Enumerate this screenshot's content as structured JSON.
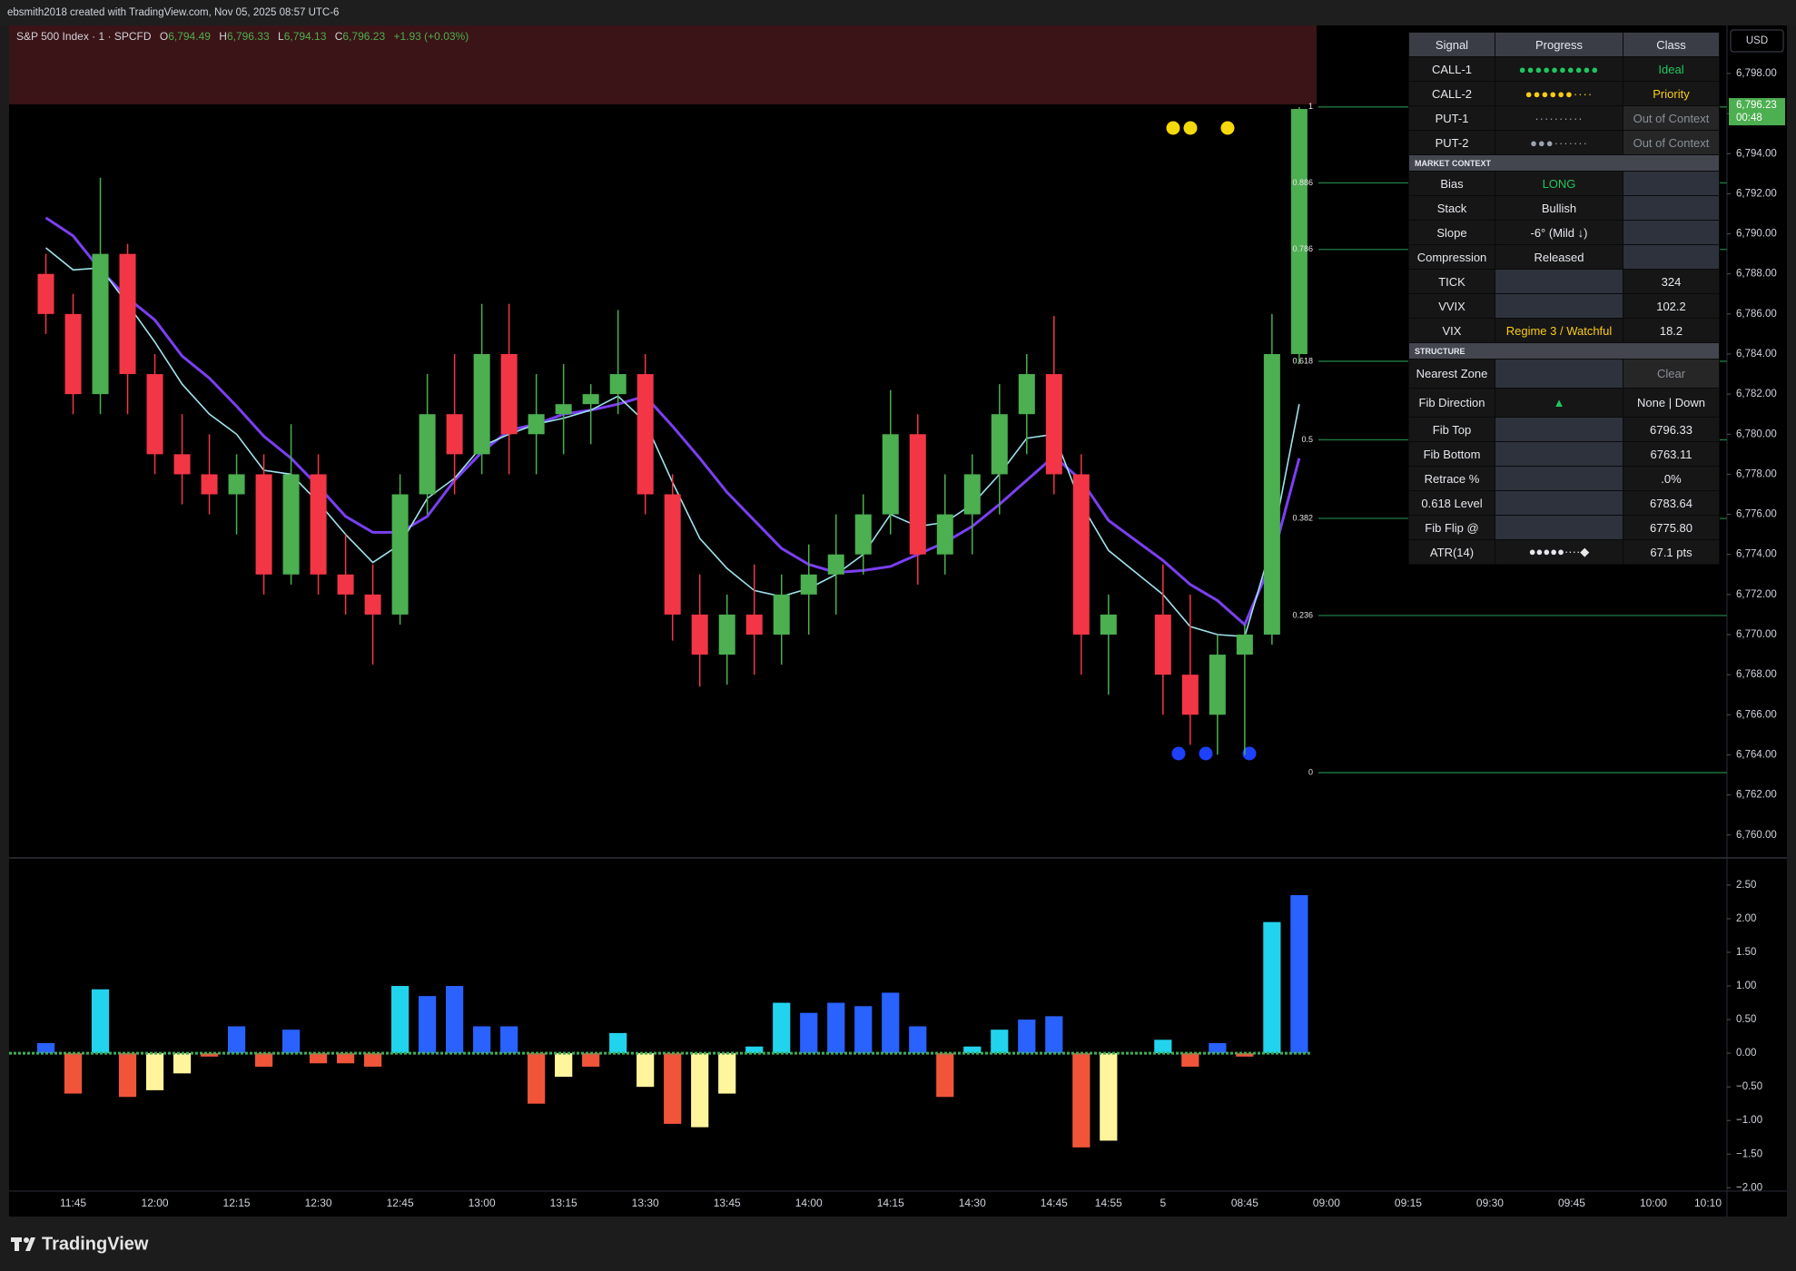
{
  "header": {
    "text": "ebsmith2018 created with TradingView.com, Nov 05, 2025 08:57 UTC-6"
  },
  "legend": {
    "symbol": "S&P 500 Index · 1 · SPCFD",
    "o_label": "O",
    "open": "6,794.49",
    "h_label": "H",
    "high": "6,796.33",
    "l_label": "L",
    "low": "6,794.13",
    "c_label": "C",
    "close": "6,796.23",
    "change": "+1.93 (+0.03%)"
  },
  "currency": "USD",
  "last_price": {
    "label": "6,796.23",
    "countdown": "00:48"
  },
  "footer": {
    "brand": "TradingView"
  },
  "chart_data": [
    {
      "type": "candlestick",
      "x": [
        0,
        1,
        2,
        3,
        4,
        5,
        6,
        7,
        8,
        9,
        10,
        11,
        12,
        13,
        14,
        15,
        16,
        17,
        18,
        19,
        20,
        21,
        22,
        23,
        24,
        25,
        26,
        27,
        28,
        29,
        30,
        31,
        32,
        33,
        34,
        35,
        36,
        37,
        38,
        39,
        41,
        42,
        43,
        44,
        45,
        46
      ],
      "open": [
        6788,
        6786,
        6782,
        6789,
        6783,
        6779,
        6778,
        6777,
        6778,
        6773,
        6778,
        6773,
        6772,
        6771,
        6777,
        6781,
        6779,
        6784,
        6780,
        6781,
        6781.5,
        6782,
        6783,
        6777,
        6771,
        6769,
        6771,
        6770,
        6772,
        6773,
        6774,
        6776,
        6780,
        6774,
        6776,
        6778,
        6781,
        6783,
        6778,
        6770,
        6771,
        6768,
        6766,
        6769,
        6770,
        6784
      ],
      "high": [
        6789,
        6787,
        6792.8,
        6789.5,
        6784,
        6781,
        6780,
        6779,
        6779,
        6780.5,
        6779,
        6775,
        6773.5,
        6778,
        6783,
        6784,
        6786.5,
        6786.5,
        6783,
        6783.5,
        6782.5,
        6786.2,
        6784,
        6778,
        6773,
        6772,
        6773.5,
        6773,
        6774.5,
        6776,
        6777,
        6782.2,
        6781,
        6778,
        6779,
        6782.5,
        6784,
        6785.9,
        6779,
        6772,
        6773.5,
        6772,
        6770,
        6770.5,
        6786,
        6796.33
      ],
      "low": [
        6785,
        6781,
        6781,
        6781,
        6778,
        6776.5,
        6776,
        6775,
        6772,
        6772.5,
        6772,
        6771,
        6768.5,
        6770.5,
        6776,
        6777,
        6778,
        6778,
        6778,
        6779,
        6779.5,
        6781,
        6776,
        6769.7,
        6767.4,
        6767.5,
        6768,
        6768.5,
        6770,
        6771,
        6773,
        6775,
        6772.5,
        6773,
        6774,
        6776,
        6779,
        6777,
        6768,
        6767,
        6766,
        6764.5,
        6764,
        6764,
        6769.5,
        6783.5
      ],
      "close": [
        6786,
        6782,
        6789,
        6783,
        6779,
        6778,
        6777,
        6778,
        6773,
        6778,
        6773,
        6772,
        6771,
        6777,
        6781,
        6779,
        6784,
        6780,
        6781,
        6781.5,
        6782,
        6783,
        6777,
        6771,
        6769,
        6771,
        6770,
        6772,
        6773,
        6774,
        6776,
        6780,
        6774,
        6776,
        6778,
        6781,
        6783,
        6778,
        6770,
        6771,
        6768,
        6766,
        6769,
        6770,
        6784,
        6796.23
      ],
      "up_color": "#4caf50",
      "down_color": "#f23645",
      "lines": [
        {
          "color": "#7b3ff2",
          "values": [
            6790.8,
            6789.9,
            6788.2,
            6786.8,
            6785.7,
            6783.9,
            6782.8,
            6781.4,
            6779.9,
            6778.8,
            6777.4,
            6775.9,
            6775.1,
            6775.1,
            6775.9,
            6777.7,
            6779.1,
            6780.2,
            6780.5,
            6781.0,
            6781.2,
            6781.5,
            6781.9,
            6780.4,
            6778.8,
            6777.1,
            6775.7,
            6774.3,
            6773.5,
            6773.1,
            6773.2,
            6773.4,
            6774.0,
            6774.6,
            6775.4,
            6776.5,
            6777.7,
            6778.9,
            6777.7,
            6775.7,
            6773.7,
            6772.5,
            6771.7,
            6770.5,
            6773.7,
            6778.8
          ]
        },
        {
          "color": "#9fe3ee",
          "values": [
            6789.3,
            6788.2,
            6788.3,
            6786.5,
            6784.6,
            6782.5,
            6781.0,
            6780.0,
            6778.2,
            6778.0,
            6776.6,
            6775.0,
            6773.6,
            6774.5,
            6776.8,
            6777.8,
            6779.4,
            6780.0,
            6780.5,
            6780.8,
            6781.2,
            6781.9,
            6780.6,
            6777.6,
            6774.8,
            6773.3,
            6772.2,
            6771.9,
            6772.3,
            6773.0,
            6774.0,
            6776.0,
            6775.4,
            6775.6,
            6776.5,
            6778.0,
            6779.8,
            6780.0,
            6776.5,
            6774.2,
            6772.0,
            6770.4,
            6770.0,
            6769.9,
            6774.5,
            6781.5
          ]
        }
      ],
      "fib_levels": [
        1,
        0.886,
        0.786,
        0.618,
        0.5,
        0.382,
        0.236,
        0
      ],
      "fib_color": "#1f7a45",
      "xlim": [
        -1.35,
        61.7
      ],
      "xticks": [
        {
          "value": 1,
          "label": "11:45"
        },
        {
          "value": 4,
          "label": "12:00"
        },
        {
          "value": 7,
          "label": "12:15"
        },
        {
          "value": 10,
          "label": "12:30"
        },
        {
          "value": 13,
          "label": "12:45"
        },
        {
          "value": 16,
          "label": "13:00"
        },
        {
          "value": 19,
          "label": "13:15"
        },
        {
          "value": 22,
          "label": "13:30"
        },
        {
          "value": 25,
          "label": "13:45"
        },
        {
          "value": 28,
          "label": "14:00"
        },
        {
          "value": 31,
          "label": "14:15"
        },
        {
          "value": 34,
          "label": "14:30"
        },
        {
          "value": 37,
          "label": "14:45"
        },
        {
          "value": 39,
          "label": "14:55"
        },
        {
          "value": 41,
          "label": "5"
        },
        {
          "value": 44,
          "label": "08:45"
        },
        {
          "value": 47,
          "label": "09:00"
        },
        {
          "value": 50,
          "label": "09:15"
        },
        {
          "value": 53,
          "label": "09:30"
        },
        {
          "value": 56,
          "label": "09:45"
        },
        {
          "value": 59,
          "label": "10:00"
        },
        {
          "value": 61,
          "label": "10:10"
        }
      ],
      "ylim": [
        6758.9,
        6800.4
      ],
      "yticks": [
        {
          "value": 6760,
          "label": "6,760.00"
        },
        {
          "value": 6762,
          "label": "6,762.00"
        },
        {
          "value": 6764,
          "label": "6,764.00"
        },
        {
          "value": 6766,
          "label": "6,766.00"
        },
        {
          "value": 6768,
          "label": "6,768.00"
        },
        {
          "value": 6770,
          "label": "6,770.00"
        },
        {
          "value": 6772,
          "label": "6,772.00"
        },
        {
          "value": 6774,
          "label": "6,774.00"
        },
        {
          "value": 6776,
          "label": "6,776.00"
        },
        {
          "value": 6778,
          "label": "6,778.00"
        },
        {
          "value": 6780,
          "label": "6,780.00"
        },
        {
          "value": 6782,
          "label": "6,782.00"
        },
        {
          "value": 6784,
          "label": "6,784.00"
        },
        {
          "value": 6786,
          "label": "6,786.00"
        },
        {
          "value": 6788,
          "label": "6,788.00"
        },
        {
          "value": 6790,
          "label": "6,790.00"
        },
        {
          "value": 6792,
          "label": "6,792.00"
        },
        {
          "value": 6794,
          "label": "6,794.00"
        },
        {
          "value": 6796,
          "label": "6,796.00"
        },
        {
          "value": 6798,
          "label": "6,798.00"
        }
      ]
    },
    {
      "type": "bar",
      "values": [
        0.15,
        -0.6,
        0.95,
        -0.65,
        -0.55,
        -0.3,
        -0.05,
        0.4,
        -0.2,
        0.35,
        -0.15,
        -0.15,
        -0.2,
        1.0,
        0.85,
        1.0,
        0.4,
        0.4,
        -0.75,
        -0.35,
        -0.2,
        0.3,
        -0.5,
        -1.05,
        -1.1,
        -0.6,
        0.1,
        0.75,
        0.6,
        0.75,
        0.7,
        0.9,
        0.4,
        -0.65,
        0.1,
        0.35,
        0.5,
        0.55,
        -1.4,
        -1.3,
        0.2,
        -0.2,
        0.15,
        -0.05,
        1.95,
        2.35
      ],
      "colors": [
        "#2962ff",
        "#f0553a",
        "#22d3ee",
        "#f0553a",
        "#fff59d",
        "#fff59d",
        "#f0553a",
        "#2962ff",
        "#f0553a",
        "#2962ff",
        "#f0553a",
        "#f0553a",
        "#f0553a",
        "#22d3ee",
        "#2962ff",
        "#2962ff",
        "#2962ff",
        "#2962ff",
        "#f0553a",
        "#fff59d",
        "#f0553a",
        "#22d3ee",
        "#fff59d",
        "#f0553a",
        "#fff59d",
        "#fff59d",
        "#22d3ee",
        "#22d3ee",
        "#2962ff",
        "#2962ff",
        "#2962ff",
        "#2962ff",
        "#2962ff",
        "#f0553a",
        "#22d3ee",
        "#22d3ee",
        "#2962ff",
        "#2962ff",
        "#f0553a",
        "#fff59d",
        "#22d3ee",
        "#f0553a",
        "#2962ff",
        "#f0553a",
        "#22d3ee",
        "#2962ff"
      ],
      "zero_color": "#3fae55",
      "ylim": [
        -2.05,
        2.89
      ],
      "yticks": [
        {
          "value": 2.5,
          "label": "2.50"
        },
        {
          "value": 2,
          "label": "2.00"
        },
        {
          "value": 1.5,
          "label": "1.50"
        },
        {
          "value": 1,
          "label": "1.00"
        },
        {
          "value": 0.5,
          "label": "0.50"
        },
        {
          "value": 0,
          "label": "0.00"
        },
        {
          "value": -0.5,
          "label": "−0.50"
        },
        {
          "value": -1,
          "label": "−1.00"
        },
        {
          "value": -1.5,
          "label": "−1.50"
        },
        {
          "value": -2,
          "label": "−2.00"
        }
      ]
    }
  ],
  "table": {
    "headers": [
      "Signal",
      "Progress",
      "Class"
    ],
    "signals": [
      {
        "name": "CALL-1",
        "progress": "●●●●●●●●●●",
        "progress_color": "#22c55e",
        "class": "Ideal",
        "class_color": "#22c55e"
      },
      {
        "name": "CALL-2",
        "progress": "●●●●●●····",
        "progress_color": "#facc15",
        "class": "Priority",
        "class_color": "#facc15"
      },
      {
        "name": "PUT-1",
        "progress": "··········",
        "progress_color": "#9ca3af",
        "class": "Out of Context",
        "class_color": "#8a8f98"
      },
      {
        "name": "PUT-2",
        "progress": "●●●·······",
        "progress_color": "#9ca3af",
        "class": "Out of Context",
        "class_color": "#8a8f98"
      }
    ],
    "market_context": {
      "title": "MARKET CONTEXT",
      "rows": [
        {
          "label": "Bias",
          "value": "LONG",
          "value_color": "#22c55e"
        },
        {
          "label": "Stack",
          "value": "Bullish"
        },
        {
          "label": "Slope",
          "value": "-6° (Mild ↓)"
        },
        {
          "label": "Compression",
          "value": "Released"
        },
        {
          "label": "TICK",
          "extra": 324
        },
        {
          "label": "VVIX",
          "extra": 102.2
        },
        {
          "label": "VIX",
          "value": "Regime 3 / Watchful",
          "value_color": "#facc15",
          "extra": 18.2
        }
      ]
    },
    "structure": {
      "title": "STRUCTURE",
      "rows": [
        {
          "label": "Nearest Zone",
          "extra": "Clear",
          "extra_color": "#8a8f98"
        },
        {
          "label": "Fib Direction",
          "value": "▲",
          "value_color": "#22c55e",
          "extra": "None | Down"
        },
        {
          "label": "Fib Top",
          "extra": 6796.33
        },
        {
          "label": "Fib Bottom",
          "extra": 6763.11
        },
        {
          "label": "Retrace %",
          "extra": ".0%"
        },
        {
          "label": "0.618 Level",
          "extra": 6783.64
        },
        {
          "label": "Fib Flip @",
          "extra": "6775.80"
        },
        {
          "label": "ATR(14)",
          "value": "●●●●●····◆",
          "extra": "67.1 pts"
        }
      ]
    }
  }
}
